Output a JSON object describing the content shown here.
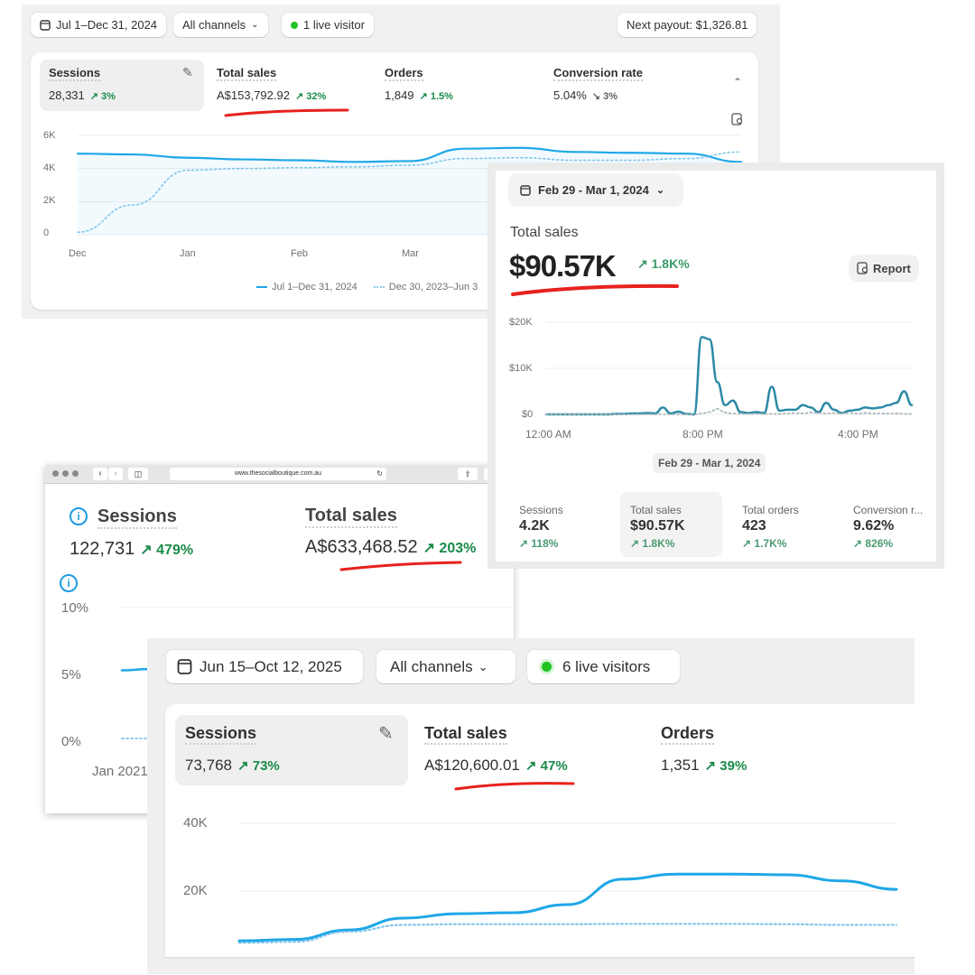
{
  "panel1": {
    "date_range": "Jul 1–Dec 31, 2024",
    "channels": "All channels",
    "live": "1 live visitor",
    "payout": "Next payout: $1,326.81",
    "metrics": [
      {
        "label": "Sessions",
        "value": "28,331",
        "change": "3%",
        "dir": "up"
      },
      {
        "label": "Total sales",
        "value": "A$153,792.92",
        "change": "32%",
        "dir": "up"
      },
      {
        "label": "Orders",
        "value": "1,849",
        "change": "1.5%",
        "dir": "up"
      },
      {
        "label": "Conversion rate",
        "value": "5.04%",
        "change": "3%",
        "dir": "down"
      }
    ],
    "legend": [
      "Jul 1–Dec 31, 2024",
      "Dec 30, 2023–Jun 3"
    ]
  },
  "panel2": {
    "date_range": "Feb 29 - Mar 1, 2024",
    "title": "Total sales",
    "value": "$90.57K",
    "change": "1.8K%",
    "report": "Report",
    "date_pill": "Feb 29 - Mar 1, 2024",
    "metrics": [
      {
        "label": "Sessions",
        "value": "4.2K",
        "change": "118%"
      },
      {
        "label": "Total sales",
        "value": "$90.57K",
        "change": "1.8K%"
      },
      {
        "label": "Total orders",
        "value": "423",
        "change": "1.7K%"
      },
      {
        "label": "Conversion r...",
        "value": "9.62%",
        "change": "826%"
      }
    ]
  },
  "panel3": {
    "url": "www.thesocialboutique.com.au",
    "metrics": [
      {
        "label": "Sessions",
        "value": "122,731",
        "change": "479%"
      },
      {
        "label": "Total sales",
        "value": "A$633,468.52",
        "change": "203%"
      }
    ]
  },
  "panel4": {
    "date_range": "Jun 15–Oct 12, 2025",
    "channels": "All channels",
    "live": "6 live visitors",
    "metrics": [
      {
        "label": "Sessions",
        "value": "73,768",
        "change": "73%"
      },
      {
        "label": "Total sales",
        "value": "A$120,600.01",
        "change": "47%"
      },
      {
        "label": "Orders",
        "value": "1,351",
        "change": "39%"
      }
    ]
  },
  "colors": {
    "line": "#1ea7e8",
    "line2": "#2b8aa6",
    "positive": "#1a8a4a",
    "live": "#22c322",
    "underline": "#e8211d"
  },
  "chart_data": [
    {
      "type": "line",
      "yticks": [
        "6K",
        "4K",
        "2K",
        "0"
      ],
      "ylim": [
        0,
        6000
      ],
      "xticks": [
        "Dec",
        "Jan",
        "Feb",
        "Mar"
      ],
      "grid": true,
      "legend_position": "bottom",
      "series": [
        {
          "name": "Jul 1–Dec 31, 2024",
          "style": "solid",
          "values": [
            4900,
            4850,
            4650,
            4550,
            4500,
            4400,
            4450,
            5200,
            5250,
            5000,
            4950,
            4900,
            4400
          ]
        },
        {
          "name": "Dec 30, 2023–Jun 3",
          "style": "dotted",
          "values": [
            150,
            1800,
            3900,
            4000,
            4050,
            4100,
            4200,
            4600,
            4650,
            4500,
            4500,
            4600,
            5000
          ]
        }
      ]
    },
    {
      "type": "line",
      "yticks": [
        "$20K",
        "$10K",
        "$0"
      ],
      "ylim": [
        0,
        20000
      ],
      "xticks": [
        "12:00 AM",
        "8:00 PM",
        "4:00 PM"
      ],
      "grid": true,
      "series": [
        {
          "style": "solid",
          "values": [
            0,
            0,
            0,
            0,
            0,
            0,
            0,
            0,
            0,
            100,
            100,
            200,
            200,
            300,
            200,
            1500,
            200,
            600,
            100,
            0,
            16800,
            16300,
            7000,
            2000,
            3000,
            500,
            300,
            500,
            300,
            6000,
            800,
            1000,
            1000,
            2000,
            1500,
            500,
            2500,
            1000,
            300,
            800,
            1000,
            1500,
            1300,
            1500,
            2000,
            2500,
            5000,
            2000
          ]
        },
        {
          "style": "dotted",
          "values": [
            0,
            0,
            0,
            0,
            0,
            0,
            0,
            0,
            0,
            0,
            0,
            0,
            0,
            0,
            0,
            0,
            0,
            0,
            0,
            0,
            200,
            500,
            1200,
            400,
            200,
            100,
            100,
            100,
            100,
            100,
            100,
            200,
            300,
            200,
            400,
            300,
            200,
            300,
            200,
            300,
            200,
            300,
            200,
            200,
            200,
            200,
            100,
            100
          ]
        }
      ]
    },
    {
      "type": "line",
      "yticks": [
        "10%",
        "5%",
        "0%"
      ],
      "ylim": [
        0,
        10
      ],
      "xticks": [
        "Jan 2021"
      ],
      "grid": true,
      "series": [
        {
          "style": "solid",
          "values": [
            5.3,
            5.4
          ]
        },
        {
          "style": "dotted",
          "values": [
            0.2,
            0.2
          ]
        }
      ]
    },
    {
      "type": "line",
      "yticks": [
        "40K",
        "20K"
      ],
      "ylim": [
        0,
        40000
      ],
      "grid": true,
      "series": [
        {
          "style": "solid",
          "values": [
            5300,
            5700,
            8500,
            12000,
            13300,
            13600,
            16000,
            23500,
            25000,
            25000,
            24800,
            23000,
            20500
          ]
        },
        {
          "style": "dotted",
          "values": [
            4700,
            5000,
            8000,
            10000,
            10200,
            10200,
            10200,
            10300,
            10300,
            10300,
            10200,
            10000,
            10000
          ]
        }
      ]
    }
  ]
}
